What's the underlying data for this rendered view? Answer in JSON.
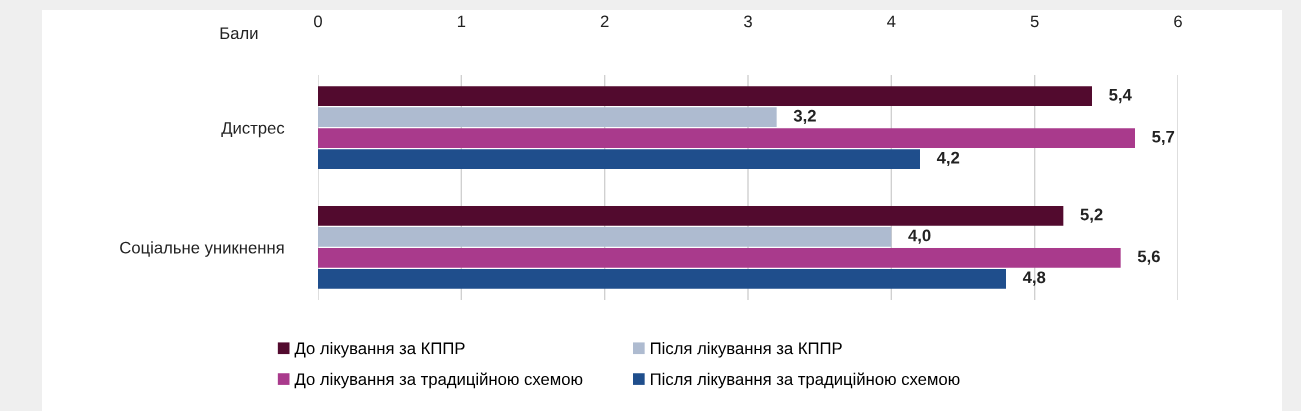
{
  "chart_data": {
    "type": "bar",
    "orientation": "horizontal",
    "xlabel": "Бали",
    "categories": [
      "Дистрес",
      "Соціальне уникнення"
    ],
    "series": [
      {
        "name": "До лікування за КППР",
        "color": "#520a2e",
        "values": [
          5.4,
          5.2
        ],
        "value_labels": [
          "5,4",
          "5,2"
        ]
      },
      {
        "name": "Після лікування за КППР",
        "color": "#aebbd0",
        "values": [
          3.2,
          4.0
        ],
        "value_labels": [
          "3,2",
          "4,0"
        ]
      },
      {
        "name": "До лікування за традиційною схемою",
        "color": "#a93a8c",
        "values": [
          5.7,
          5.6
        ],
        "value_labels": [
          "5,7",
          "5,6"
        ]
      },
      {
        "name": "Після лікування за традиційною схемою",
        "color": "#1f4e8c",
        "values": [
          4.2,
          4.8
        ],
        "value_labels": [
          "4,2",
          "4,8"
        ]
      }
    ],
    "xlim": [
      0,
      6
    ],
    "xticks": [
      0,
      1,
      2,
      3,
      4,
      5,
      6
    ],
    "grid": "x",
    "legend": "bottom"
  }
}
